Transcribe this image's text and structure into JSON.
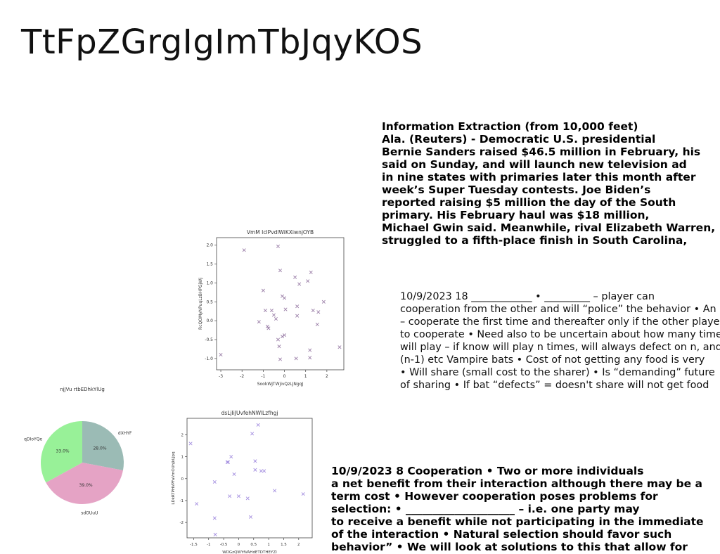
{
  "title": "TtFpZGrgIgImTbJqyKOS",
  "block_reuters": {
    "lines": [
      "Information Extraction (from 10,000 feet)",
      "Ala. (Reuters) - Democratic U.S. presidential",
      "Bernie Sanders raised $46.5 million in February, his",
      "said on Sunday, and will launch new television ad",
      "in nine states with primaries later this month after",
      "week’s Super Tuesday contests. Joe Biden’s",
      "reported raising $5 million the day of the South",
      "primary. His February haul was $18 million,",
      "Michael Gwin said. Meanwhile, rival Elizabeth Warren,",
      "struggled to a fifth-place finish in South Carolina,"
    ]
  },
  "block_vampire": {
    "lines": [
      "10/9/2023 18 ____________ • _________ – player can",
      "cooperation from the other  and will “police” the behavior • An",
      "– cooperate the first time and thereafter only if the other player",
      "to cooperate • Need also to be uncertain about how many times",
      "will play – if know will play n times, will always defect on n, and",
      "(n-1) etc Vampire bats • Cost of not getting any food is very",
      "• Will share (small cost to the sharer) • Is “demanding” future",
      "of sharing • If bat “defects” = doesn't share will not get food"
    ]
  },
  "block_coop": {
    "lines": [
      "10/9/2023 8 Cooperation • Two or more individuals",
      "a net benefit from their interaction although there may be a",
      "term cost • However cooperation poses problems for",
      "selection: • ____________________ – i.e. one party may",
      "to receive a benefit while not participating in the immediate",
      "of the interaction • Natural selection should favor such",
      "behavior” • We will look at solutions to this that allow for"
    ]
  },
  "chart_data": [
    {
      "type": "scatter",
      "title": "VmM IcIPvdlWiKXiwnjOYB",
      "xlabel": "SookWjTWjivQzLJNgqJ",
      "ylabel": "RcQOMyNPuqLzBHPGjWj",
      "xlim": [
        -3.2,
        2.8
      ],
      "ylim": [
        -1.3,
        2.2
      ],
      "xticks": [
        -3,
        -2,
        -1,
        0,
        1,
        2
      ],
      "yticks": [
        -1.0,
        -0.5,
        0.0,
        0.5,
        1.0,
        1.5,
        2.0
      ],
      "ytick_labels": [
        "-1.0",
        "-0.5",
        "0.0",
        "0.5",
        "1.0",
        "1.5",
        "2.0"
      ],
      "marker_color": "#9b7fa8",
      "marker": "x",
      "points": [
        [
          -3.0,
          -0.9
        ],
        [
          -1.9,
          1.87
        ],
        [
          -0.3,
          1.97
        ],
        [
          -0.2,
          1.33
        ],
        [
          -1.0,
          0.8
        ],
        [
          -0.1,
          0.65
        ],
        [
          0.0,
          0.6
        ],
        [
          0.5,
          1.15
        ],
        [
          0.7,
          0.97
        ],
        [
          1.1,
          1.05
        ],
        [
          1.25,
          1.28
        ],
        [
          -0.6,
          0.27
        ],
        [
          -0.9,
          0.27
        ],
        [
          -0.5,
          0.15
        ],
        [
          -0.4,
          0.05
        ],
        [
          -1.2,
          -0.03
        ],
        [
          -0.8,
          -0.15
        ],
        [
          0.05,
          0.3
        ],
        [
          0.6,
          0.38
        ],
        [
          0.6,
          0.13
        ],
        [
          1.35,
          0.27
        ],
        [
          1.6,
          0.23
        ],
        [
          1.85,
          0.5
        ],
        [
          1.55,
          -0.1
        ],
        [
          -0.3,
          -0.5
        ],
        [
          -0.1,
          -0.42
        ],
        [
          0.0,
          -0.38
        ],
        [
          -0.25,
          -0.68
        ],
        [
          -0.2,
          -1.02
        ],
        [
          0.55,
          -1.0
        ],
        [
          1.2,
          -0.78
        ],
        [
          1.2,
          -0.98
        ],
        [
          2.6,
          -0.7
        ],
        [
          -0.75,
          -0.2
        ]
      ]
    },
    {
      "type": "pie",
      "title": "njJVu  rtbEDhkYlUg",
      "labels": [
        "dXHYF",
        "sdOUuU",
        "qDIoYQe"
      ],
      "values": [
        28.0,
        39.0,
        33.0
      ],
      "value_labels": [
        "28.0%",
        "39.0%",
        "33.0%"
      ],
      "colors": [
        "#9bbbb5",
        "#e5a3c5",
        "#98f198"
      ],
      "start_angle": 90
    },
    {
      "type": "scatter",
      "title": "dsLjIiJUvfehNWlLzfhgj",
      "xlabel": "WDGzQWYfVAHdETDTHEYZI",
      "ylabel": "LDkRTPHVPFaVmOUhJkLJpq",
      "xlim": [
        -1.72,
        2.45
      ],
      "ylim": [
        -2.7,
        2.75
      ],
      "xticks": [
        -1.5,
        -1.0,
        -0.5,
        0.0,
        0.5,
        1.0,
        1.5,
        2.0
      ],
      "yticks": [
        -2,
        -1,
        0,
        1,
        2
      ],
      "ytick_labels": [
        "-2",
        "-1",
        "0",
        "1",
        "2"
      ],
      "marker_color": "#a48fe0",
      "marker": "x",
      "points": [
        [
          -1.6,
          1.6
        ],
        [
          0.65,
          2.45
        ],
        [
          0.45,
          2.05
        ],
        [
          -0.25,
          1.0
        ],
        [
          -0.35,
          0.75
        ],
        [
          -0.38,
          0.75
        ],
        [
          0.55,
          0.8
        ],
        [
          0.55,
          0.4
        ],
        [
          0.75,
          0.35
        ],
        [
          0.85,
          0.35
        ],
        [
          -0.15,
          0.2
        ],
        [
          -0.8,
          -0.15
        ],
        [
          -1.4,
          -1.15
        ],
        [
          -0.8,
          -1.8
        ],
        [
          -0.78,
          -2.55
        ],
        [
          -0.3,
          -0.8
        ],
        [
          0.0,
          -0.8
        ],
        [
          0.3,
          -0.9
        ],
        [
          0.4,
          -1.75
        ],
        [
          1.2,
          -0.55
        ],
        [
          2.15,
          -0.7
        ]
      ]
    }
  ]
}
